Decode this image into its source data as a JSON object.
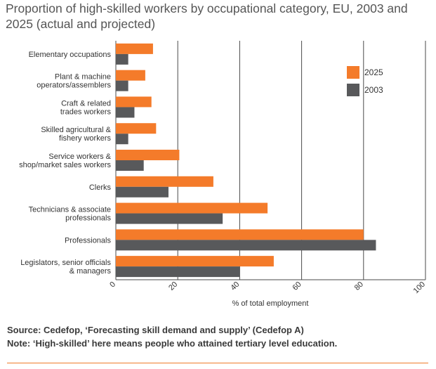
{
  "chart_data": {
    "type": "bar",
    "orientation": "horizontal",
    "title": "Proportion of high-skilled workers by occupational category, EU, 2003 and 2025 (actual and projected)",
    "xlabel": "% of total employment",
    "xlim": [
      0,
      100
    ],
    "xticks": [
      "0",
      "20",
      "40",
      "60",
      "80",
      "100"
    ],
    "grid": true,
    "legend_position": "top-right",
    "categories": [
      [
        "Elementary occupations"
      ],
      [
        "Plant & machine",
        "operators/assemblers"
      ],
      [
        "Craft & related",
        "trades workers"
      ],
      [
        "Skilled agricultural &",
        "fishery workers"
      ],
      [
        "Service workers &",
        "shop/market sales workers"
      ],
      [
        "Clerks"
      ],
      [
        "Technicians & associate",
        "professionals"
      ],
      [
        "Professionals"
      ],
      [
        "Legislators, senior officials",
        "& managers"
      ]
    ],
    "series": [
      {
        "name": "2025",
        "color": "#f47b2a",
        "values": [
          12,
          9.5,
          11.5,
          13,
          20.5,
          31.5,
          49,
          80,
          51
        ]
      },
      {
        "name": "2003",
        "color": "#58595b",
        "values": [
          4,
          4,
          6,
          4,
          9,
          17,
          34.5,
          84,
          40
        ]
      }
    ]
  },
  "footer": {
    "source": "Source: Cedefop, ‘Forecasting skill demand and supply’ (Cedefop A)",
    "note": "Note: ‘High-skilled’ here means people who attained tertiary level education."
  }
}
